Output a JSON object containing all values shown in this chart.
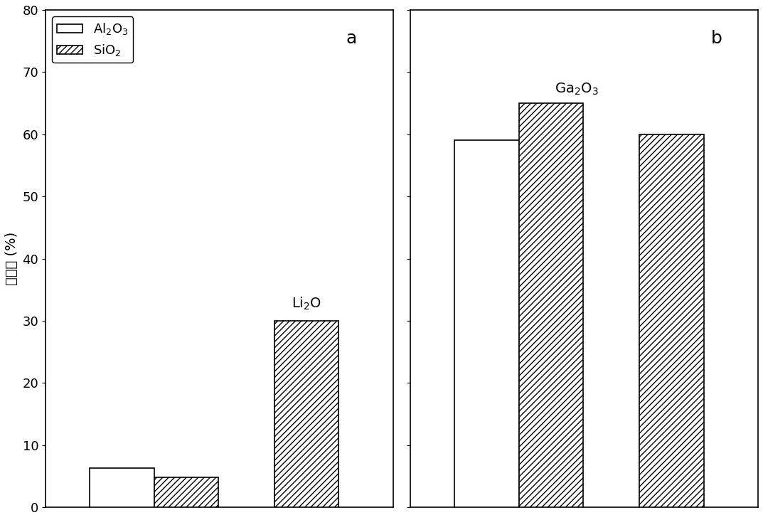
{
  "panel_a": {
    "label": "a",
    "groups": [
      {
        "al2o3": 6.3,
        "sio2": 4.8
      },
      {
        "al2o3": null,
        "sio2": 30.0
      }
    ]
  },
  "panel_b": {
    "label": "b",
    "groups": [
      {
        "al2o3": 59.0,
        "sio2": 65.0
      },
      {
        "al2o3": null,
        "sio2": 60.0
      }
    ]
  },
  "ylim": [
    0,
    80
  ],
  "yticks": [
    0,
    10,
    20,
    30,
    40,
    50,
    60,
    70,
    80
  ],
  "ylabel": "溶出率 (%)",
  "bar_width": 0.38,
  "group_positions": [
    0.45,
    1.35
  ],
  "xlim": [
    0,
    2.05
  ],
  "hatch_pattern": "////",
  "face_color_al2o3": "white",
  "face_color_sio2": "white",
  "edge_color": "black",
  "font_size_label": 14,
  "font_size_tick": 13,
  "font_size_annotation": 14,
  "font_size_legend": 13,
  "font_size_panel_label": 18
}
